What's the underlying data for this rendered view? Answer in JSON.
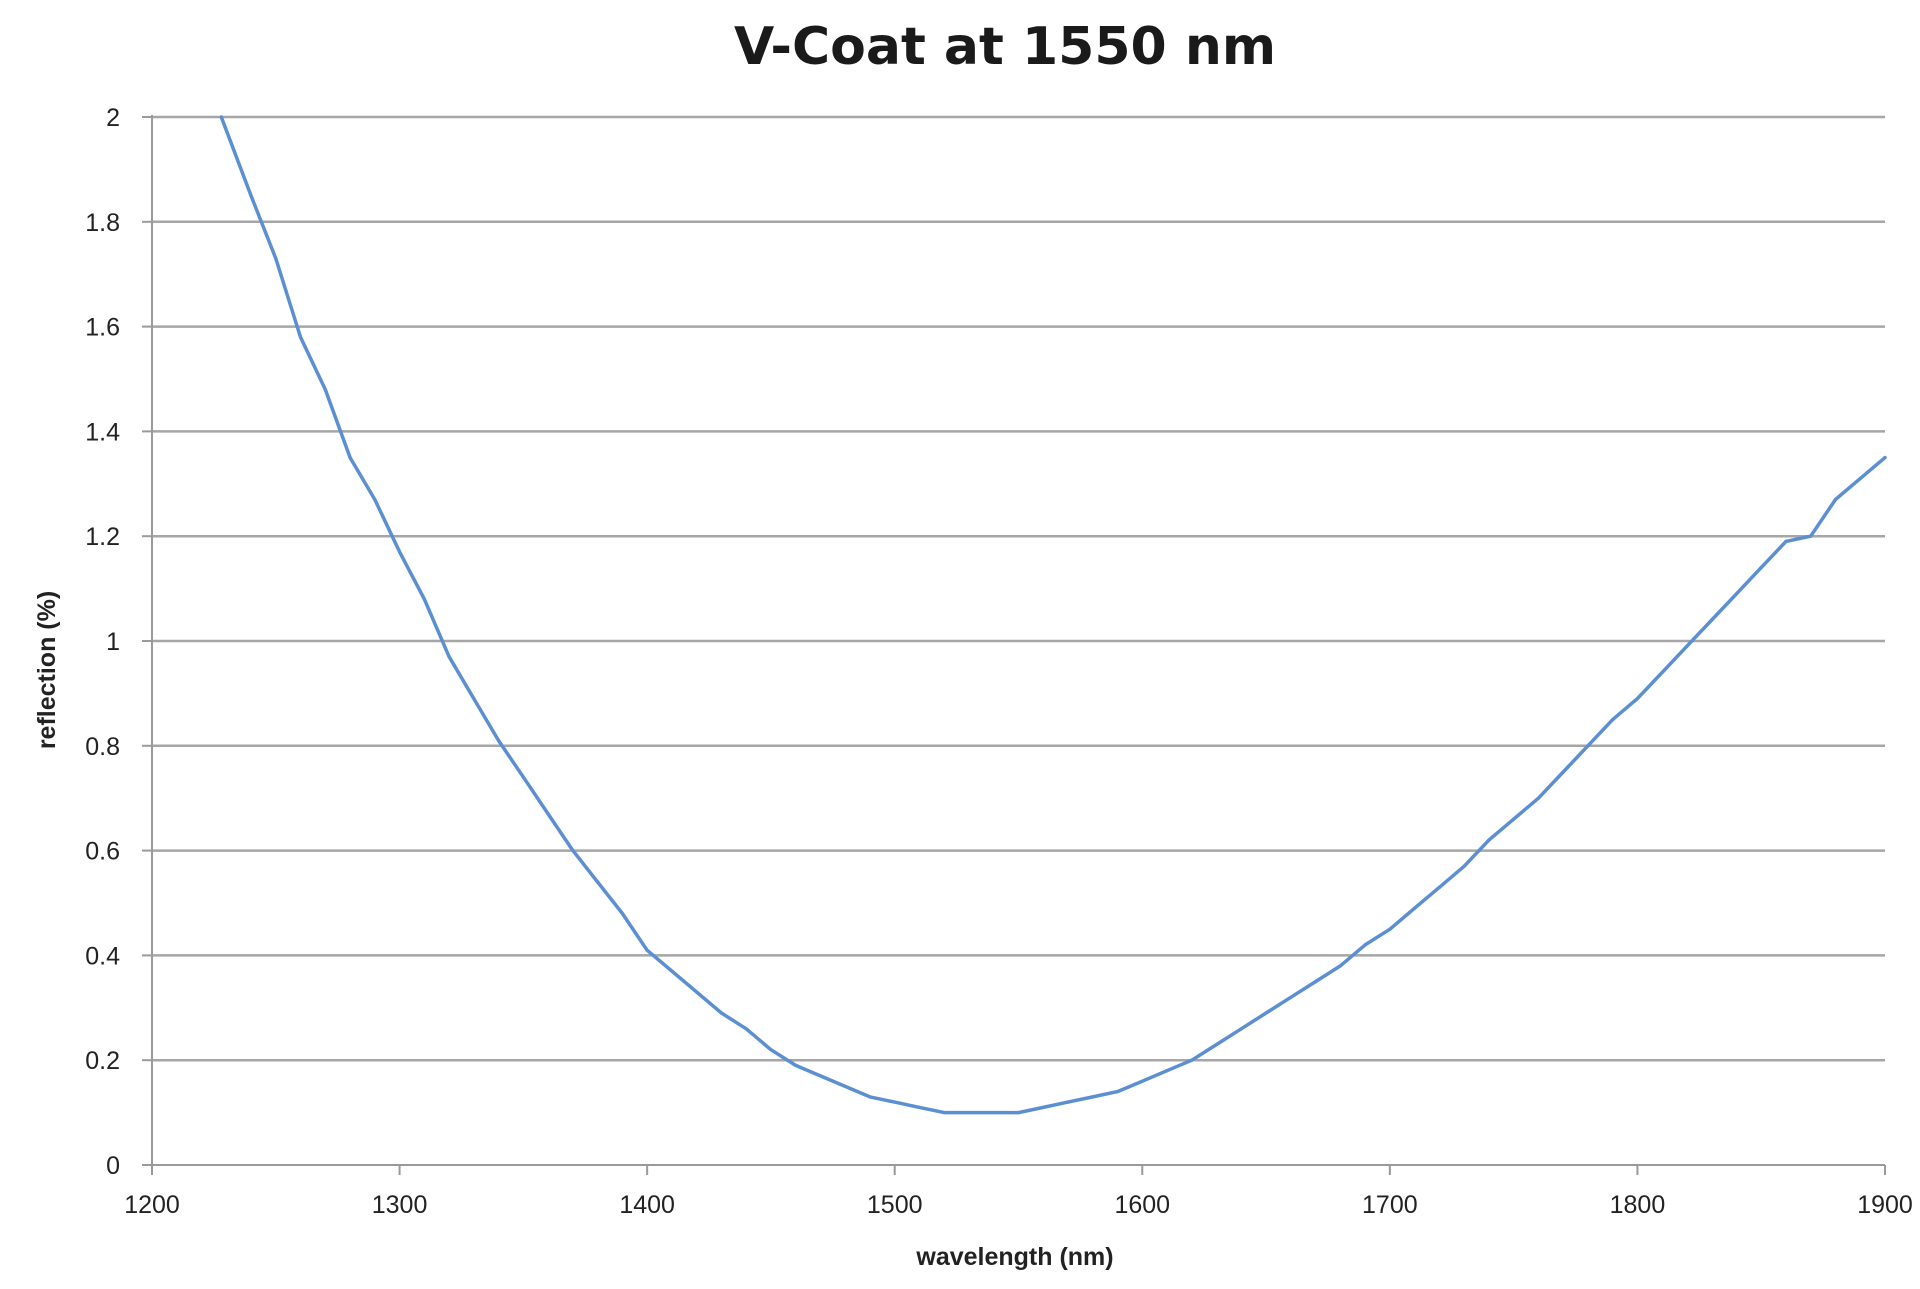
{
  "chart_data": {
    "type": "line",
    "title": "V-Coat at 1550 nm",
    "xlabel": "wavelength (nm)",
    "ylabel": "reflection (%)",
    "xlim": [
      1200,
      1900
    ],
    "ylim": [
      0,
      2
    ],
    "x_ticks": [
      "1200",
      "1300",
      "1400",
      "1500",
      "1600",
      "1700",
      "1800",
      "1900"
    ],
    "y_ticks": [
      "0",
      "0.2",
      "0.4",
      "0.6",
      "0.8",
      "1",
      "1.2",
      "1.4",
      "1.6",
      "1.8",
      "2"
    ],
    "grid": "horizontal",
    "legend": "none",
    "line_color": "#5b8fd2",
    "series": [
      {
        "x": [
          1228,
          1240,
          1250,
          1260,
          1270,
          1280,
          1290,
          1300,
          1310,
          1320,
          1330,
          1340,
          1350,
          1360,
          1370,
          1380,
          1390,
          1400,
          1410,
          1420,
          1430,
          1440,
          1450,
          1460,
          1470,
          1480,
          1490,
          1500,
          1510,
          1520,
          1530,
          1540,
          1550,
          1560,
          1570,
          1580,
          1590,
          1600,
          1610,
          1620,
          1630,
          1640,
          1650,
          1660,
          1670,
          1680,
          1690,
          1700,
          1710,
          1720,
          1730,
          1740,
          1750,
          1760,
          1770,
          1780,
          1790,
          1800,
          1810,
          1820,
          1830,
          1840,
          1850,
          1860,
          1870,
          1880,
          1890,
          1900
        ],
        "y": [
          2.0,
          1.85,
          1.73,
          1.58,
          1.48,
          1.35,
          1.27,
          1.17,
          1.08,
          0.97,
          0.89,
          0.81,
          0.74,
          0.67,
          0.6,
          0.54,
          0.48,
          0.41,
          0.37,
          0.33,
          0.29,
          0.26,
          0.22,
          0.19,
          0.17,
          0.15,
          0.13,
          0.12,
          0.11,
          0.1,
          0.1,
          0.1,
          0.1,
          0.11,
          0.12,
          0.13,
          0.14,
          0.16,
          0.18,
          0.2,
          0.23,
          0.26,
          0.29,
          0.32,
          0.35,
          0.38,
          0.42,
          0.45,
          0.49,
          0.53,
          0.57,
          0.62,
          0.66,
          0.7,
          0.75,
          0.8,
          0.85,
          0.89,
          0.94,
          0.99,
          1.04,
          1.09,
          1.14,
          1.19,
          1.2,
          1.27,
          1.31,
          1.35
        ]
      }
    ]
  }
}
